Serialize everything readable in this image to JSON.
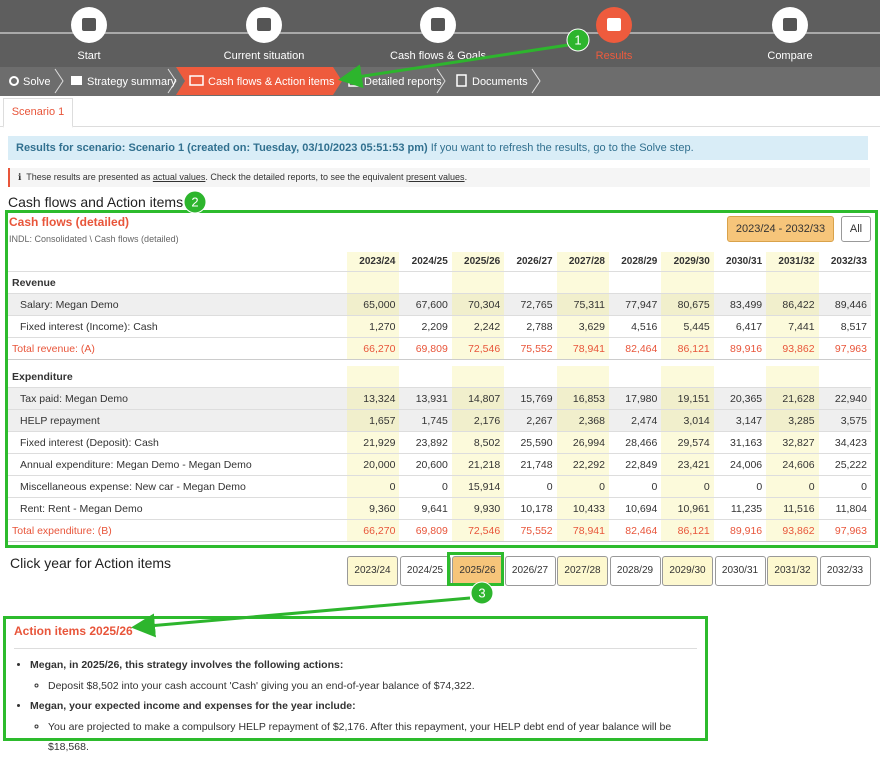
{
  "nav": {
    "steps": [
      "Start",
      "Current situation",
      "Cash flows & Goals",
      "Results",
      "Compare"
    ],
    "substeps": [
      "Solve",
      "Strategy summary",
      "Cash flows & Action items",
      "Detailed reports",
      "Documents"
    ]
  },
  "callouts": [
    "1",
    "2",
    "3"
  ],
  "tab": "Scenario 1",
  "info": {
    "bold": "Results for scenario: Scenario 1 (created on: Tuesday, 03/10/2023 05:51:53 pm)",
    "text": " If you want to refresh the results, go to the Solve step."
  },
  "note": {
    "parts": [
      "These results are presented as ",
      "actual values",
      ". Check the detailed reports, to see the equivalent ",
      "present values",
      "."
    ]
  },
  "section_title": "Cash flows and Action items",
  "cashflows": {
    "title": "Cash flows (detailed)",
    "subtitle": "INDL: Consolidated \\ Cash flows (detailed)",
    "range_button": "2023/24 - 2032/33",
    "all_button": "All",
    "years": [
      "2023/24",
      "2024/25",
      "2025/26",
      "2026/27",
      "2027/28",
      "2028/29",
      "2029/30",
      "2030/31",
      "2031/32",
      "2032/33"
    ],
    "groups": [
      {
        "name": "Revenue",
        "rows": [
          {
            "label": "Salary: Megan Demo",
            "values": [
              "65,000",
              "67,600",
              "70,304",
              "72,765",
              "75,311",
              "77,947",
              "80,675",
              "83,499",
              "86,422",
              "89,446"
            ]
          },
          {
            "label": "Fixed interest (Income): Cash",
            "values": [
              "1,270",
              "2,209",
              "2,242",
              "2,788",
              "3,629",
              "4,516",
              "5,445",
              "6,417",
              "7,441",
              "8,517"
            ]
          }
        ],
        "total": {
          "label": "Total revenue: (A)",
          "values": [
            "66,270",
            "69,809",
            "72,546",
            "75,552",
            "78,941",
            "82,464",
            "86,121",
            "89,916",
            "93,862",
            "97,963"
          ]
        }
      },
      {
        "name": "Expenditure",
        "rows": [
          {
            "label": "Tax paid: Megan Demo",
            "values": [
              "13,324",
              "13,931",
              "14,807",
              "15,769",
              "16,853",
              "17,980",
              "19,151",
              "20,365",
              "21,628",
              "22,940"
            ]
          },
          {
            "label": "HELP repayment",
            "values": [
              "1,657",
              "1,745",
              "2,176",
              "2,267",
              "2,368",
              "2,474",
              "3,014",
              "3,147",
              "3,285",
              "3,575"
            ]
          },
          {
            "label": "Fixed interest (Deposit): Cash",
            "values": [
              "21,929",
              "23,892",
              "8,502",
              "25,590",
              "26,994",
              "28,466",
              "29,574",
              "31,163",
              "32,827",
              "34,423"
            ]
          },
          {
            "label": "Annual expenditure: Megan Demo - Megan Demo",
            "values": [
              "20,000",
              "20,600",
              "21,218",
              "21,748",
              "22,292",
              "22,849",
              "23,421",
              "24,006",
              "24,606",
              "25,222"
            ]
          },
          {
            "label": "Miscellaneous expense: New car - Megan Demo",
            "values": [
              "0",
              "0",
              "15,914",
              "0",
              "0",
              "0",
              "0",
              "0",
              "0",
              "0"
            ]
          },
          {
            "label": "Rent: Rent - Megan Demo",
            "values": [
              "9,360",
              "9,641",
              "9,930",
              "10,178",
              "10,433",
              "10,694",
              "10,961",
              "11,235",
              "11,516",
              "11,804"
            ]
          }
        ],
        "total": {
          "label": "Total expenditure: (B)",
          "values": [
            "66,270",
            "69,809",
            "72,546",
            "75,552",
            "78,941",
            "82,464",
            "86,121",
            "89,916",
            "93,862",
            "97,963"
          ]
        }
      }
    ]
  },
  "action_prompt": "Click year for Action items",
  "action_items": {
    "title": "Action items 2025/26",
    "items": [
      {
        "heading": "Megan, in 2025/26, this strategy involves the following actions:",
        "details": [
          "Deposit $8,502 into your cash account 'Cash' giving you an end-of-year balance of $74,322."
        ]
      },
      {
        "heading": "Megan, your expected income and expenses for the year include:",
        "details": [
          "You are projected to make a compulsory HELP repayment of $2,176. After this repayment, your HELP debt end of year balance will be $18,568."
        ]
      }
    ]
  }
}
